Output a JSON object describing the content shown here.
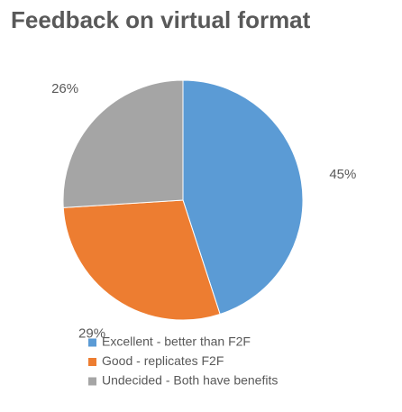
{
  "chart_data": {
    "type": "pie",
    "title": "Feedback on virtual format",
    "categories": [
      "Excellent - better than F2F",
      "Good - replicates F2F",
      "Undecided - Both have benefits"
    ],
    "values": [
      45,
      29,
      26
    ],
    "value_labels": [
      "45%",
      "29%",
      "26%"
    ],
    "colors": [
      "#5b9bd5",
      "#ed7d31",
      "#a5a5a5"
    ],
    "legend": "bottom"
  }
}
